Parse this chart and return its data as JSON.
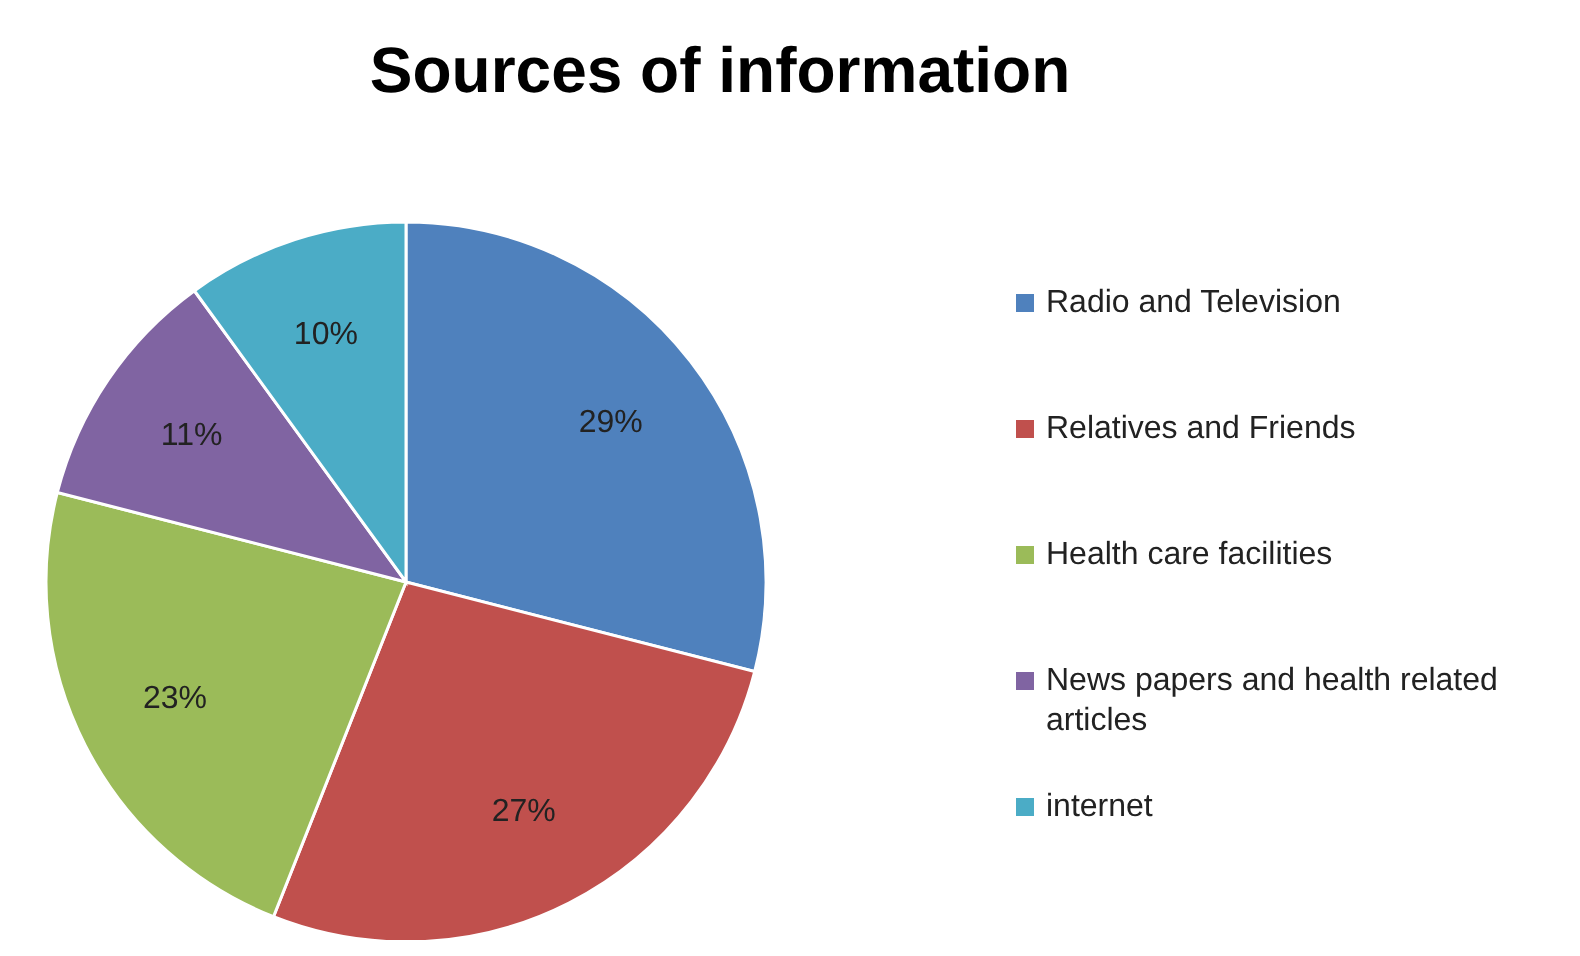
{
  "chart_data": {
    "type": "pie",
    "title": "Sources of information",
    "categories": [
      "Radio and Television",
      "Relatives and Friends",
      "Health care facilities",
      "News papers and health related articles",
      "internet"
    ],
    "values": [
      29,
      27,
      23,
      11,
      10
    ],
    "value_labels": [
      "29%",
      "27%",
      "23%",
      "11%",
      "10%"
    ],
    "colors": [
      "#4f81bd",
      "#c0504d",
      "#9bbb59",
      "#8064a2",
      "#4bacc6"
    ],
    "legend": "right"
  }
}
